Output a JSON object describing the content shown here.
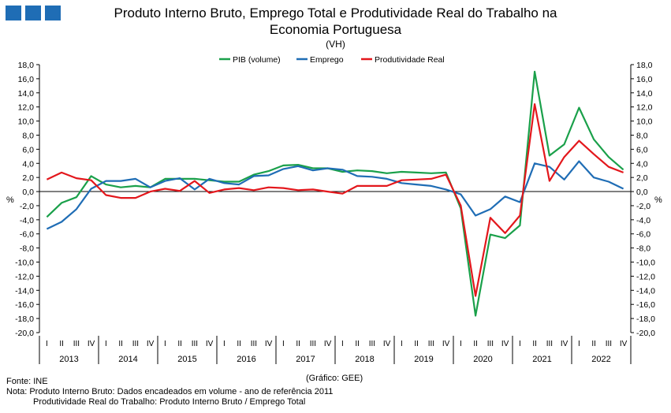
{
  "header": {
    "title_line1": "Produto Interno Bruto, Emprego Total e Produtividade Real do Trabalho na",
    "title_line2": "Economia Portuguesa",
    "subtitle": "(VH)",
    "logo_color": "#1f6db5"
  },
  "chart_data": {
    "type": "line",
    "title": "Produto Interno Bruto, Emprego Total e Produtividade Real do Trabalho na Economia Portuguesa",
    "subtitle": "(VH)",
    "ylabel_left": "%",
    "ylabel_right": "%",
    "ylim": [
      -20,
      18
    ],
    "ytick_step": 2,
    "grid": false,
    "legend_position": "top-center",
    "quarters": [
      "I",
      "II",
      "III",
      "IV"
    ],
    "years": [
      "2013",
      "2014",
      "2015",
      "2016",
      "2017",
      "2018",
      "2019",
      "2020",
      "2021",
      "2022"
    ],
    "series": [
      {
        "name": "PIB (volume)",
        "color": "#1aa04a",
        "values": [
          -3.6,
          -1.6,
          -0.8,
          2.2,
          1.0,
          0.6,
          0.8,
          0.6,
          1.8,
          1.8,
          1.8,
          1.6,
          1.4,
          1.4,
          2.4,
          2.9,
          3.7,
          3.8,
          3.3,
          3.3,
          2.8,
          3.0,
          2.9,
          2.6,
          2.8,
          2.7,
          2.6,
          2.7,
          -2.4,
          -17.6,
          -6.1,
          -6.6,
          -4.8,
          17.0,
          5.1,
          6.7,
          11.9,
          7.4,
          4.9,
          3.1
        ]
      },
      {
        "name": "Emprego",
        "color": "#1f6db5",
        "values": [
          -5.3,
          -4.3,
          -2.5,
          0.4,
          1.5,
          1.5,
          1.8,
          0.6,
          1.5,
          1.9,
          0.3,
          1.8,
          1.2,
          1.0,
          2.2,
          2.3,
          3.2,
          3.6,
          3.0,
          3.3,
          3.1,
          2.2,
          2.1,
          1.8,
          1.2,
          1.0,
          0.8,
          0.3,
          -0.4,
          -3.4,
          -2.5,
          -0.7,
          -1.5,
          4.0,
          3.5,
          1.7,
          4.3,
          2.0,
          1.4,
          0.4
        ]
      },
      {
        "name": "Produtividade Real",
        "color": "#e3171c",
        "values": [
          1.7,
          2.7,
          1.9,
          1.6,
          -0.5,
          -0.9,
          -0.9,
          0.0,
          0.4,
          0.1,
          1.5,
          -0.2,
          0.3,
          0.5,
          0.2,
          0.6,
          0.5,
          0.2,
          0.3,
          0.0,
          -0.3,
          0.8,
          0.8,
          0.8,
          1.6,
          1.7,
          1.8,
          2.4,
          -2.0,
          -14.8,
          -3.7,
          -5.9,
          -3.4,
          12.4,
          1.5,
          4.9,
          7.2,
          5.3,
          3.5,
          2.7
        ]
      }
    ]
  },
  "footer": {
    "source": "Fonte: INE",
    "credit": "(Gráfico: GEE)",
    "note_line1": "Nota: Produto Interno Bruto: Dados encadeados em volume - ano de referência 2011",
    "note_line2": "Produtividade Real do Trabalho: Produto Interno Bruto / Emprego Total"
  }
}
